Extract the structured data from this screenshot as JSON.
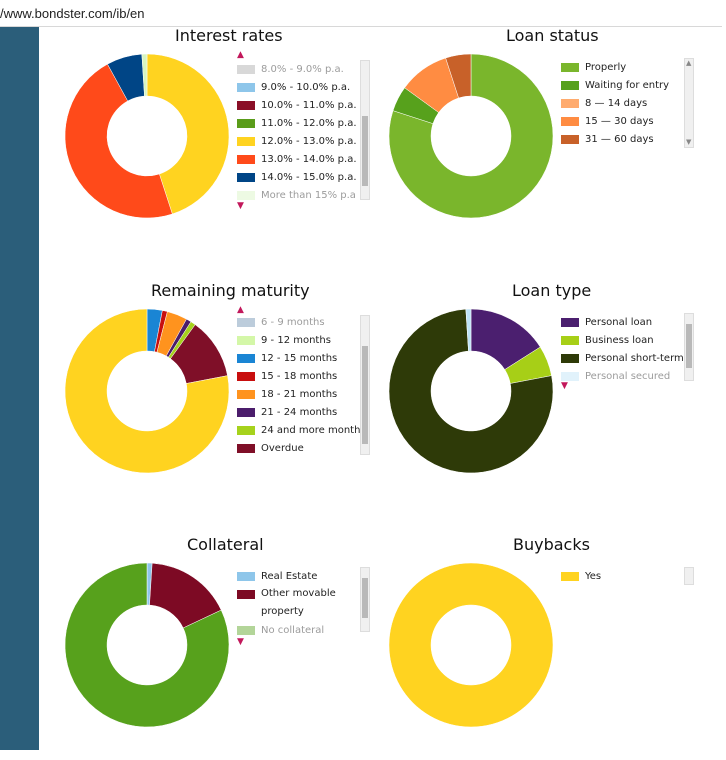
{
  "url": "/www.bondster.com/ib/en",
  "chart_data": [
    {
      "type": "pie",
      "title": "Interest rates",
      "labels": [
        "8.0% - 9.0% p.a.",
        "9.0% - 10.0% p.a.",
        "10.0% - 11.0% p.a.",
        "11.0% - 12.0% p.a.",
        "12.0% - 13.0% p.a.",
        "13.0% - 14.0% p.a.",
        "14.0% - 15.0% p.a.",
        "More than 15% p.a"
      ],
      "values": [
        0,
        0,
        0,
        0,
        45,
        47,
        7,
        1
      ],
      "colors": [
        "#a9a9a9",
        "#8ec6ea",
        "#8a0f27",
        "#5a9c1a",
        "#ffd320",
        "#ff4a1a",
        "#004586",
        "#d8f5c0"
      ]
    },
    {
      "type": "pie",
      "title": "Loan status",
      "labels": [
        "Properly",
        "Waiting for entry",
        "8 — 14 days",
        "15 — 30 days",
        "31 — 60 days"
      ],
      "values": [
        80,
        5,
        0,
        10,
        5
      ],
      "colors": [
        "#7ab62c",
        "#57a11c",
        "#ffab6e",
        "#ff8c42",
        "#c86129"
      ]
    },
    {
      "type": "pie",
      "title": "Remaining maturity",
      "labels": [
        "6 - 9 months",
        "9 - 12 months",
        "12 - 15 months",
        "15 - 18 months",
        "18 - 21 months",
        "21 - 24 months",
        "24 and more months",
        "Overdue"
      ],
      "values": [
        0,
        0,
        3,
        1,
        4,
        1,
        1,
        12
      ],
      "colors": [
        "#6a8fb0",
        "#d4f7a8",
        "#1a85d4",
        "#c80e0e",
        "#ff931e",
        "#4b1d6b",
        "#a6d21c",
        "#7f0f28"
      ],
      "extra": {
        "label": "",
        "value": 78,
        "color": "#ffd320"
      }
    },
    {
      "type": "pie",
      "title": "Loan type",
      "labels": [
        "Personal loan",
        "Business loan",
        "Personal short-term",
        "Personal secured"
      ],
      "values": [
        16,
        6,
        77,
        1
      ],
      "colors": [
        "#4b1f6f",
        "#a7cf17",
        "#2e3a08",
        "#bde3f7"
      ]
    },
    {
      "type": "pie",
      "title": "Collateral",
      "labels": [
        "Real Estate",
        "Other movable property",
        "No collateral"
      ],
      "values": [
        1,
        17,
        82
      ],
      "colors": [
        "#8ec6ea",
        "#7d0a24",
        "#57a11c"
      ]
    },
    {
      "type": "pie",
      "title": "Buybacks",
      "labels": [
        "Yes"
      ],
      "values": [
        100
      ],
      "colors": [
        "#ffd320"
      ]
    }
  ]
}
